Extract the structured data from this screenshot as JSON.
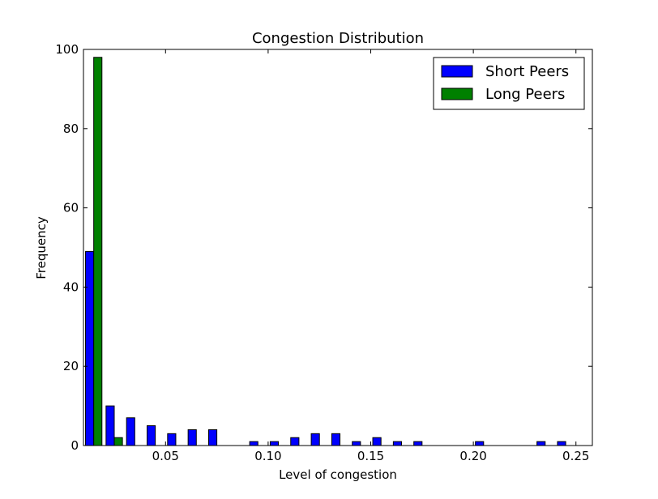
{
  "chart_data": {
    "type": "bar",
    "title": "Congestion Distribution",
    "xlabel": "Level of congestion",
    "ylabel": "Frequency",
    "xlim": [
      0.01,
      0.258
    ],
    "ylim": [
      0,
      100
    ],
    "bin_width": 0.01,
    "x": [
      0.015,
      0.025,
      0.035,
      0.045,
      0.055,
      0.065,
      0.075,
      0.085,
      0.095,
      0.105,
      0.115,
      0.125,
      0.135,
      0.145,
      0.155,
      0.165,
      0.175,
      0.185,
      0.195,
      0.205,
      0.215,
      0.225,
      0.235,
      0.245
    ],
    "series": [
      {
        "name": "Short Peers",
        "color": "#0000ff",
        "values": [
          49,
          10,
          7,
          5,
          3,
          4,
          4,
          0,
          1,
          1,
          2,
          3,
          3,
          1,
          2,
          1,
          1,
          0,
          0,
          1,
          0,
          0,
          1,
          1
        ]
      },
      {
        "name": "Long Peers",
        "color": "#008000",
        "values": [
          98,
          2,
          0,
          0,
          0,
          0,
          0,
          0,
          0,
          0,
          0,
          0,
          0,
          0,
          0,
          0,
          0,
          0,
          0,
          0,
          0,
          0,
          0,
          0
        ]
      }
    ],
    "xticks": [
      "0.05",
      "0.10",
      "0.15",
      "0.20",
      "0.25"
    ],
    "xtick_values": [
      0.05,
      0.1,
      0.15,
      0.2,
      0.25
    ],
    "yticks": [
      "0",
      "20",
      "40",
      "60",
      "80",
      "100"
    ],
    "ytick_values": [
      0,
      20,
      40,
      60,
      80,
      100
    ],
    "grid": false,
    "legend_position": "top-right"
  }
}
